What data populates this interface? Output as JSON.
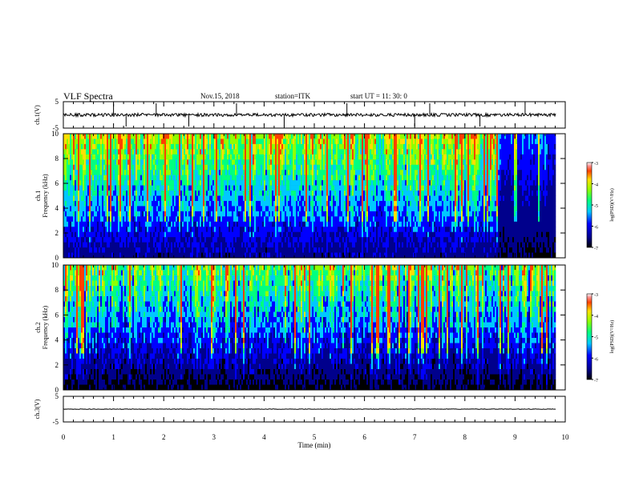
{
  "header": {
    "title": "VLF Spectra",
    "date": "Nov.15, 2018",
    "station": "station=ITK",
    "start": "start  UT =  11: 30: 0"
  },
  "chart_data": [
    {
      "type": "line",
      "panel": "ch1-waveform",
      "ylabel": "ch.1(V)",
      "ylim": [
        -5,
        5
      ],
      "yticks": [
        "5",
        "-5"
      ],
      "xlim": [
        0,
        10
      ],
      "baseline": 0,
      "note_spikes_at_min": [
        1.0,
        1.25,
        1.85,
        2.5,
        3.45,
        4.4,
        5.65,
        7.0,
        7.3,
        8.3,
        9.2
      ]
    },
    {
      "type": "heatmap",
      "panel": "ch1-spectrogram",
      "ylabel_line1": "ch.1",
      "ylabel_line2": "Frequency  (kHz)",
      "ylim": [
        0,
        10
      ],
      "yticks": [
        "0",
        "2",
        "4",
        "6",
        "8",
        "10"
      ],
      "xlim": [
        0,
        10
      ],
      "colorbar": {
        "label": "log(PSD)(V²/Hz)",
        "ticks": [
          "-3",
          "-4",
          "-5",
          "-6",
          "-7"
        ],
        "range": [
          -7,
          -3
        ]
      }
    },
    {
      "type": "heatmap",
      "panel": "ch2-spectrogram",
      "ylabel_line1": "ch.2",
      "ylabel_line2": "Frequency  (kHz)",
      "ylim": [
        0,
        10
      ],
      "yticks": [
        "0",
        "2",
        "4",
        "6",
        "8",
        "10"
      ],
      "xlim": [
        0,
        10
      ],
      "colorbar": {
        "label": "log(PSD)(V²/Hz)",
        "ticks": [
          "-3",
          "-4",
          "-5",
          "-6",
          "-7"
        ],
        "range": [
          -7,
          -3
        ]
      }
    },
    {
      "type": "line",
      "panel": "ch3-waveform",
      "ylabel": "ch.3(V)",
      "ylim": [
        -5,
        5
      ],
      "yticks": [
        "5",
        "-5"
      ],
      "xlim": [
        0,
        10
      ],
      "baseline": 0
    }
  ],
  "xaxis": {
    "label": "Time  (min)",
    "ticks": [
      "0",
      "1",
      "2",
      "3",
      "4",
      "5",
      "6",
      "7",
      "8",
      "9",
      "10"
    ]
  }
}
